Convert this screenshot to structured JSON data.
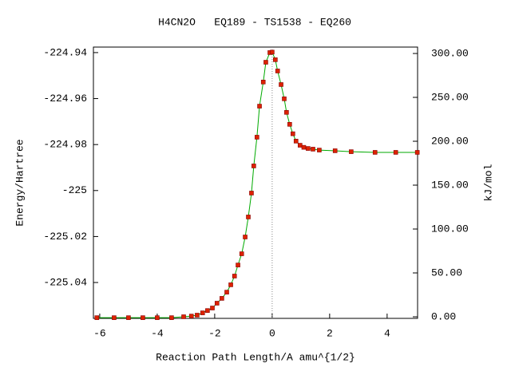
{
  "chart_data": {
    "type": "line",
    "title": "H4CN2O   EQ189 - TS1538 - EQ260",
    "xlabel": "Reaction Path Length/A amu^{1/2}",
    "ylabel": "Energy/Hartree",
    "y2label": "kJ/mol",
    "x": [
      -6.1,
      -5.5,
      -5,
      -4.5,
      -4,
      -3.5,
      -3.08,
      -2.81,
      -2.61,
      -2.42,
      -2.25,
      -2.08,
      -1.92,
      -1.75,
      -1.58,
      -1.44,
      -1.31,
      -1.19,
      -1.06,
      -0.94,
      -0.83,
      -0.72,
      -0.64,
      -0.53,
      -0.44,
      -0.31,
      -0.22,
      -0.08,
      0,
      0.11,
      0.19,
      0.31,
      0.42,
      0.5,
      0.61,
      0.72,
      0.83,
      0.97,
      1.1,
      1.25,
      1.42,
      1.64,
      2.19,
      2.75,
      3.58,
      4.3,
      5.05
    ],
    "series": [
      {
        "color": "#00aa00",
        "marker_color": "#dd2200",
        "values": [
          -225.0553,
          -225.0553,
          -225.0553,
          -225.0553,
          -225.0553,
          -225.0553,
          -225.0549,
          -225.0546,
          -225.0542,
          -225.0532,
          -225.0522,
          -225.0511,
          -225.049,
          -225.0469,
          -225.0442,
          -225.041,
          -225.0372,
          -225.0324,
          -225.0275,
          -225.0202,
          -225.0115,
          -225.0011,
          -224.9893,
          -224.9768,
          -224.9633,
          -224.9528,
          -224.9442,
          -224.94,
          -224.9398,
          -224.9431,
          -224.948,
          -224.9539,
          -224.9601,
          -224.966,
          -224.9712,
          -224.9753,
          -224.9785,
          -224.9803,
          -224.9812,
          -224.9817,
          -224.982,
          -224.9824,
          -224.9827,
          -224.9831,
          -224.9834,
          -224.9834,
          -224.9834
        ]
      }
    ],
    "xlim": [
      -6.22,
      5.06
    ],
    "xticks": [
      -6,
      -4,
      -2,
      0,
      2,
      4
    ],
    "ylim": [
      -225.0556,
      -224.9376
    ],
    "yticks": [
      -225.04,
      -225.02,
      -225,
      -224.98,
      -224.96,
      -224.94
    ],
    "y2lim": [
      -1.8,
      307.3
    ],
    "y2ticks": [
      {
        "value": 0,
        "label": "0.00"
      },
      {
        "value": 50,
        "label": "50.00"
      },
      {
        "value": 100,
        "label": "100.00"
      },
      {
        "value": 150,
        "label": "150.00"
      },
      {
        "value": 200,
        "label": "200.00"
      },
      {
        "value": 250,
        "label": "250.00"
      },
      {
        "value": 300,
        "label": "300.00"
      }
    ],
    "vline_x": 0
  }
}
